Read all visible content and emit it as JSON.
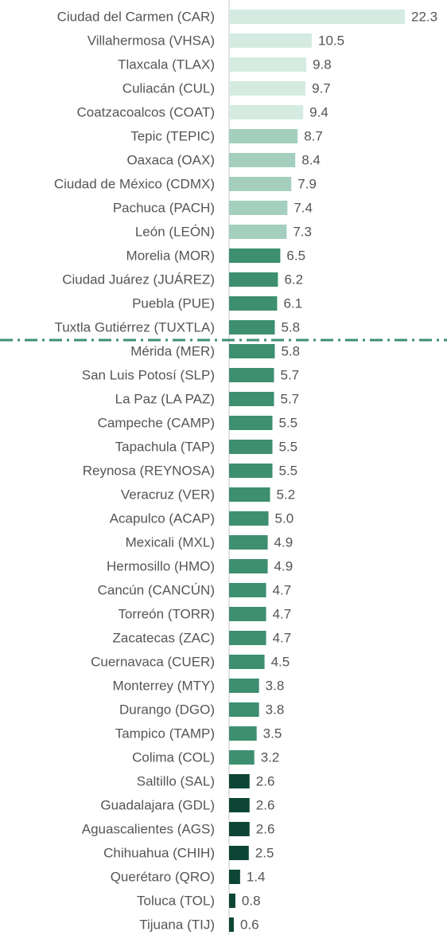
{
  "chart_data": {
    "type": "hbar",
    "categories": [
      "Ciudad del Carmen (CAR)",
      "Villahermosa (VHSA)",
      "Tlaxcala (TLAX)",
      "Culiacán (CUL)",
      "Coatzacoalcos (COAT)",
      "Tepic (TEPIC)",
      "Oaxaca (OAX)",
      "Ciudad de México (CDMX)",
      "Pachuca (PACH)",
      "León (LEÓN)",
      "Morelia (MOR)",
      "Ciudad Juárez (JUÁREZ)",
      "Puebla (PUE)",
      "Tuxtla Gutiérrez (TUXTLA)",
      "Mérida (MER)",
      "San Luis Potosí (SLP)",
      "La Paz (LA PAZ)",
      "Campeche (CAMP)",
      "Tapachula (TAP)",
      "Reynosa (REYNOSA)",
      "Veracruz (VER)",
      "Acapulco (ACAP)",
      "Mexicali (MXL)",
      "Hermosillo (HMO)",
      "Cancún (CANCÚN)",
      "Torreón (TORR)",
      "Zacatecas (ZAC)",
      "Cuernavaca (CUER)",
      "Monterrey (MTY)",
      "Durango (DGO)",
      "Tampico (TAMP)",
      "Colima (COL)",
      "Saltillo (SAL)",
      "Guadalajara (GDL)",
      "Aguascalientes (AGS)",
      "Chihuahua (CHIH)",
      "Querétaro (QRO)",
      "Toluca (TOL)",
      "Tijuana (TIJ)"
    ],
    "values": [
      22.3,
      10.5,
      9.8,
      9.7,
      9.4,
      8.7,
      8.4,
      7.9,
      7.4,
      7.3,
      6.5,
      6.2,
      6.1,
      5.8,
      5.8,
      5.7,
      5.7,
      5.5,
      5.5,
      5.5,
      5.2,
      5,
      4.9,
      4.9,
      4.7,
      4.7,
      4.7,
      4.5,
      3.8,
      3.8,
      3.5,
      3.2,
      2.6,
      2.6,
      2.6,
      2.5,
      1.4,
      0.8,
      0.6
    ],
    "value_labels": [
      "22.3",
      "10.5",
      "9.8",
      "9.7",
      "9.4",
      "8.7",
      "8.4",
      "7.9",
      "7.4",
      "7.3",
      "6.5",
      "6.2",
      "6.1",
      "5.8",
      "5.8",
      "5.7",
      "5.7",
      "5.5",
      "5.5",
      "5.5",
      "5.2",
      "5.0",
      "4.9",
      "4.9",
      "4.7",
      "4.7",
      "4.7",
      "4.5",
      "3.8",
      "3.8",
      "3.5",
      "3.2",
      "2.6",
      "2.6",
      "2.6",
      "2.5",
      "1.4",
      "0.8",
      "0.6"
    ],
    "colors": [
      "#d5ebe2",
      "#d5ebe2",
      "#d5ebe2",
      "#d5ebe2",
      "#d5ebe2",
      "#a4cfbf",
      "#a4cfbf",
      "#a4cfbf",
      "#a4cfbf",
      "#a4cfbf",
      "#3d8f70",
      "#3d8f70",
      "#3d8f70",
      "#3d8f70",
      "#3d8f70",
      "#3d8f70",
      "#3d8f70",
      "#3d8f70",
      "#3d8f70",
      "#3d8f70",
      "#3d8f70",
      "#3d8f70",
      "#3d8f70",
      "#3d8f70",
      "#3d8f70",
      "#3d8f70",
      "#3d8f70",
      "#3d8f70",
      "#3d8f70",
      "#3d8f70",
      "#3d8f70",
      "#3d8f70",
      "#0c4536",
      "#0c4536",
      "#0c4536",
      "#0c4536",
      "#0c4536",
      "#0c4536",
      "#0c4536"
    ],
    "xlim": [
      0,
      25
    ]
  }
}
